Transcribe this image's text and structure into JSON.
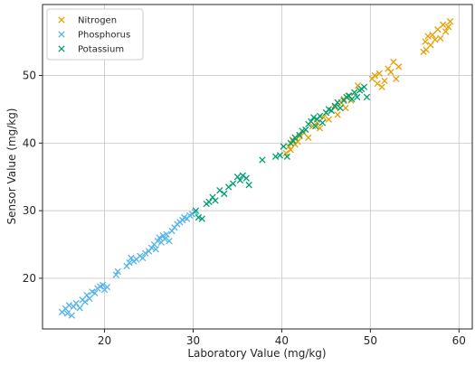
{
  "chart_data": {
    "type": "scatter",
    "title": "",
    "xlabel": "Laboratory Value (mg/kg)",
    "ylabel": "Sensor Value (mg/kg)",
    "xlim": [
      13,
      61.5
    ],
    "ylim": [
      12.5,
      60.5
    ],
    "xticks": [
      20,
      30,
      40,
      50,
      60
    ],
    "yticks": [
      20,
      30,
      40,
      50
    ],
    "grid": true,
    "legend": "top-left",
    "marker": "x",
    "series": [
      {
        "name": "Nitrogen",
        "color": "#E69F00",
        "points": [
          [
            40.5,
            38.5
          ],
          [
            40.8,
            39.5
          ],
          [
            41.0,
            39.0
          ],
          [
            41.2,
            40.5
          ],
          [
            41.5,
            39.8
          ],
          [
            41.8,
            40.2
          ],
          [
            42.0,
            41.0
          ],
          [
            42.5,
            41.5
          ],
          [
            43.0,
            40.8
          ],
          [
            43.5,
            42.5
          ],
          [
            44.0,
            43.0
          ],
          [
            44.3,
            42.2
          ],
          [
            44.7,
            43.8
          ],
          [
            45.0,
            44.5
          ],
          [
            45.3,
            43.5
          ],
          [
            45.6,
            44.8
          ],
          [
            46.0,
            45.3
          ],
          [
            46.3,
            44.2
          ],
          [
            46.7,
            46.0
          ],
          [
            47.0,
            46.5
          ],
          [
            47.2,
            45.2
          ],
          [
            47.5,
            47.0
          ],
          [
            47.8,
            46.3
          ],
          [
            48.2,
            47.5
          ],
          [
            48.6,
            48.5
          ],
          [
            49.0,
            48.0
          ],
          [
            50.2,
            49.5
          ],
          [
            50.5,
            50.0
          ],
          [
            50.8,
            48.8
          ],
          [
            51.0,
            50.3
          ],
          [
            51.3,
            48.3
          ],
          [
            51.6,
            49.2
          ],
          [
            52.0,
            51.0
          ],
          [
            52.3,
            50.5
          ],
          [
            52.6,
            52.0
          ],
          [
            52.9,
            49.5
          ],
          [
            53.2,
            51.3
          ],
          [
            56.0,
            53.5
          ],
          [
            56.2,
            55.0
          ],
          [
            56.5,
            55.8
          ],
          [
            56.8,
            54.5
          ],
          [
            57.0,
            56.0
          ],
          [
            57.3,
            55.3
          ],
          [
            57.6,
            56.8
          ],
          [
            57.9,
            55.5
          ],
          [
            58.2,
            57.5
          ],
          [
            58.5,
            56.5
          ],
          [
            58.8,
            57.2
          ],
          [
            59.0,
            58.0
          ],
          [
            56.3,
            53.8
          ]
        ]
      },
      {
        "name": "Phosphorus",
        "color": "#56B4E9",
        "points": [
          [
            15.2,
            15.0
          ],
          [
            15.6,
            15.5
          ],
          [
            15.8,
            14.8
          ],
          [
            16.0,
            16.0
          ],
          [
            16.3,
            14.5
          ],
          [
            16.5,
            15.8
          ],
          [
            16.8,
            16.3
          ],
          [
            17.2,
            15.6
          ],
          [
            17.5,
            16.8
          ],
          [
            17.8,
            16.5
          ],
          [
            18.0,
            17.5
          ],
          [
            18.3,
            17.0
          ],
          [
            18.6,
            18.0
          ],
          [
            18.9,
            17.8
          ],
          [
            19.2,
            18.5
          ],
          [
            19.5,
            18.8
          ],
          [
            19.8,
            19.0
          ],
          [
            20.0,
            18.3
          ],
          [
            20.3,
            18.7
          ],
          [
            21.3,
            20.5
          ],
          [
            21.5,
            21.0
          ],
          [
            22.5,
            21.8
          ],
          [
            22.8,
            22.3
          ],
          [
            23.0,
            23.0
          ],
          [
            23.3,
            22.5
          ],
          [
            23.6,
            22.8
          ],
          [
            24.0,
            23.3
          ],
          [
            24.3,
            23.0
          ],
          [
            24.6,
            23.7
          ],
          [
            25.0,
            24.0
          ],
          [
            25.3,
            24.5
          ],
          [
            25.6,
            25.0
          ],
          [
            25.8,
            24.3
          ],
          [
            26.0,
            25.5
          ],
          [
            26.2,
            26.0
          ],
          [
            26.4,
            25.3
          ],
          [
            26.6,
            26.3
          ],
          [
            26.8,
            25.8
          ],
          [
            27.0,
            26.5
          ],
          [
            27.3,
            25.5
          ],
          [
            27.6,
            27.0
          ],
          [
            27.9,
            27.5
          ],
          [
            28.2,
            28.0
          ],
          [
            28.5,
            28.3
          ],
          [
            28.8,
            28.6
          ],
          [
            29.0,
            29.0
          ],
          [
            29.3,
            28.8
          ],
          [
            29.6,
            29.3
          ],
          [
            29.9,
            29.5
          ],
          [
            30.2,
            29.8
          ]
        ]
      },
      {
        "name": "Potassium",
        "color": "#009E73",
        "points": [
          [
            30.3,
            30.0
          ],
          [
            30.6,
            29.0
          ],
          [
            31.0,
            28.8
          ],
          [
            31.5,
            31.0
          ],
          [
            31.8,
            31.3
          ],
          [
            32.2,
            32.0
          ],
          [
            32.5,
            31.5
          ],
          [
            33.0,
            33.0
          ],
          [
            33.5,
            32.5
          ],
          [
            34.0,
            33.5
          ],
          [
            34.5,
            34.0
          ],
          [
            35.0,
            35.0
          ],
          [
            35.3,
            34.5
          ],
          [
            35.6,
            35.2
          ],
          [
            36.0,
            34.8
          ],
          [
            36.3,
            33.8
          ],
          [
            37.8,
            37.5
          ],
          [
            39.3,
            38.0
          ],
          [
            39.8,
            38.2
          ],
          [
            40.2,
            39.5
          ],
          [
            40.6,
            38.0
          ],
          [
            41.0,
            40.0
          ],
          [
            41.5,
            40.8
          ],
          [
            42.0,
            41.2
          ],
          [
            42.3,
            41.8
          ],
          [
            42.7,
            42.0
          ],
          [
            43.0,
            42.8
          ],
          [
            43.3,
            43.2
          ],
          [
            43.6,
            43.8
          ],
          [
            44.0,
            43.5
          ],
          [
            44.3,
            44.0
          ],
          [
            44.6,
            43.0
          ],
          [
            45.0,
            44.5
          ],
          [
            45.3,
            45.0
          ],
          [
            45.6,
            44.8
          ],
          [
            46.0,
            45.5
          ],
          [
            46.3,
            46.0
          ],
          [
            46.6,
            45.2
          ],
          [
            47.0,
            46.3
          ],
          [
            47.3,
            46.8
          ],
          [
            47.6,
            47.0
          ],
          [
            47.9,
            46.5
          ],
          [
            48.2,
            47.5
          ],
          [
            48.5,
            46.8
          ],
          [
            48.8,
            47.8
          ],
          [
            49.0,
            48.0
          ],
          [
            49.3,
            48.3
          ],
          [
            49.6,
            46.8
          ],
          [
            41.3,
            40.3
          ],
          [
            43.8,
            42.5
          ]
        ]
      }
    ]
  }
}
